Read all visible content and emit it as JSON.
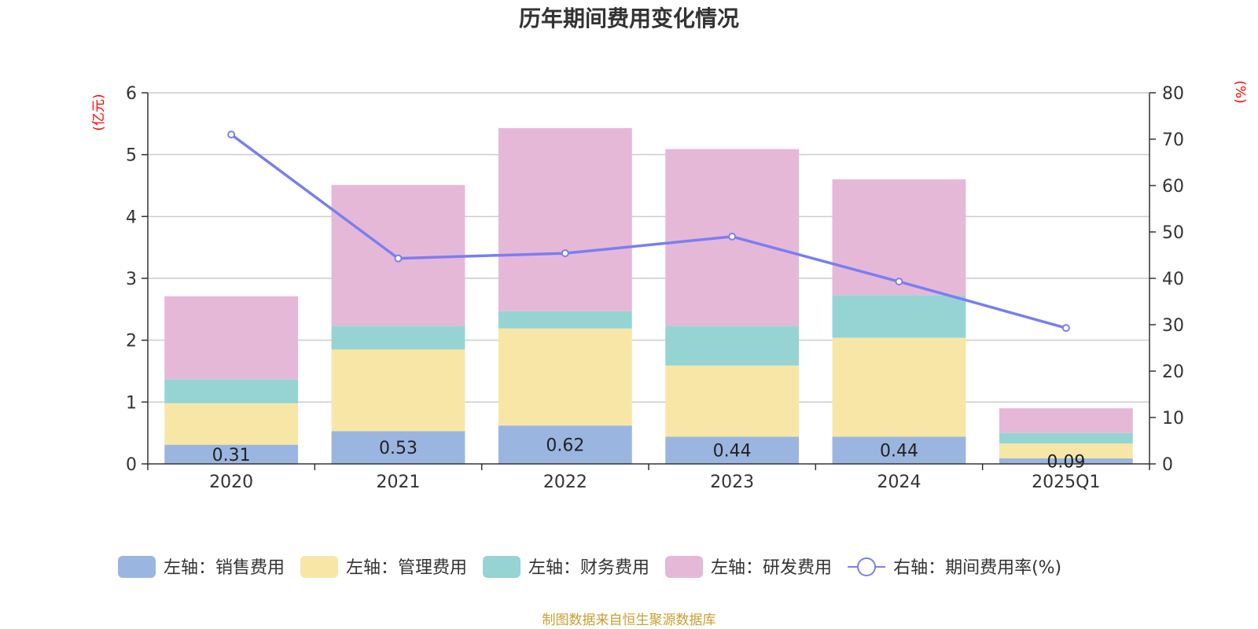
{
  "chart_data": {
    "type": "bar",
    "title": "历年期间费用变化情况",
    "categories": [
      "2020",
      "2021",
      "2022",
      "2023",
      "2024",
      "2025Q1"
    ],
    "left_axis": {
      "unit_label": "(亿元)",
      "ylim": [
        0,
        6
      ],
      "ticks": [
        "0",
        "1",
        "2",
        "3",
        "4",
        "5",
        "6"
      ]
    },
    "right_axis": {
      "unit_label": "(%)",
      "ylim": [
        0,
        80
      ],
      "ticks": [
        "0",
        "10",
        "20",
        "30",
        "40",
        "50",
        "60",
        "70",
        "80"
      ]
    },
    "series": [
      {
        "name": "左轴：销售费用",
        "type": "bar",
        "axis": "left",
        "color": "#9ab6e0",
        "values": [
          0.31,
          0.53,
          0.62,
          0.44,
          0.44,
          0.09
        ],
        "labels": [
          "0.31",
          "0.53",
          "0.62",
          "0.44",
          "0.44",
          "0.09"
        ]
      },
      {
        "name": "左轴：管理费用",
        "type": "bar",
        "axis": "left",
        "color": "#f7e6a6",
        "values": [
          0.67,
          1.32,
          1.57,
          1.15,
          1.6,
          0.24
        ]
      },
      {
        "name": "左轴：财务费用",
        "type": "bar",
        "axis": "left",
        "color": "#96d4d4",
        "values": [
          0.39,
          0.38,
          0.28,
          0.64,
          0.69,
          0.17
        ]
      },
      {
        "name": "左轴：研发费用",
        "type": "bar",
        "axis": "left",
        "color": "#e6b8d8",
        "values": [
          1.34,
          2.28,
          2.96,
          2.86,
          1.87,
          0.4
        ]
      },
      {
        "name": "右轴：期间费用率(%)",
        "type": "line",
        "axis": "right",
        "color": "#7a7ef2",
        "values": [
          71.0,
          44.3,
          45.4,
          49.0,
          39.3,
          29.3
        ]
      }
    ],
    "grid": true,
    "legend_position": "bottom-center",
    "source": "制图数据来自恒生聚源数据库"
  }
}
